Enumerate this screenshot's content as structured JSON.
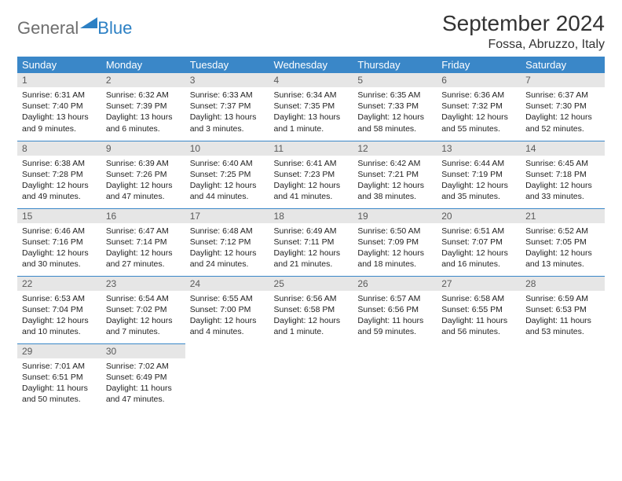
{
  "logo": {
    "text_general": "General",
    "text_blue": "Blue"
  },
  "title": "September 2024",
  "location": "Fossa, Abruzzo, Italy",
  "colors": {
    "header_bg": "#3a87c8",
    "header_text": "#ffffff",
    "daynum_bg": "#e6e6e6",
    "daynum_text": "#5a5a5a",
    "row_border": "#3a87c8",
    "logo_blue": "#2c80c4",
    "logo_gray": "#6e6e6e"
  },
  "day_headers": [
    "Sunday",
    "Monday",
    "Tuesday",
    "Wednesday",
    "Thursday",
    "Friday",
    "Saturday"
  ],
  "weeks": [
    [
      {
        "num": "1",
        "sunrise": "Sunrise: 6:31 AM",
        "sunset": "Sunset: 7:40 PM",
        "daylight": "Daylight: 13 hours and 9 minutes."
      },
      {
        "num": "2",
        "sunrise": "Sunrise: 6:32 AM",
        "sunset": "Sunset: 7:39 PM",
        "daylight": "Daylight: 13 hours and 6 minutes."
      },
      {
        "num": "3",
        "sunrise": "Sunrise: 6:33 AM",
        "sunset": "Sunset: 7:37 PM",
        "daylight": "Daylight: 13 hours and 3 minutes."
      },
      {
        "num": "4",
        "sunrise": "Sunrise: 6:34 AM",
        "sunset": "Sunset: 7:35 PM",
        "daylight": "Daylight: 13 hours and 1 minute."
      },
      {
        "num": "5",
        "sunrise": "Sunrise: 6:35 AM",
        "sunset": "Sunset: 7:33 PM",
        "daylight": "Daylight: 12 hours and 58 minutes."
      },
      {
        "num": "6",
        "sunrise": "Sunrise: 6:36 AM",
        "sunset": "Sunset: 7:32 PM",
        "daylight": "Daylight: 12 hours and 55 minutes."
      },
      {
        "num": "7",
        "sunrise": "Sunrise: 6:37 AM",
        "sunset": "Sunset: 7:30 PM",
        "daylight": "Daylight: 12 hours and 52 minutes."
      }
    ],
    [
      {
        "num": "8",
        "sunrise": "Sunrise: 6:38 AM",
        "sunset": "Sunset: 7:28 PM",
        "daylight": "Daylight: 12 hours and 49 minutes."
      },
      {
        "num": "9",
        "sunrise": "Sunrise: 6:39 AM",
        "sunset": "Sunset: 7:26 PM",
        "daylight": "Daylight: 12 hours and 47 minutes."
      },
      {
        "num": "10",
        "sunrise": "Sunrise: 6:40 AM",
        "sunset": "Sunset: 7:25 PM",
        "daylight": "Daylight: 12 hours and 44 minutes."
      },
      {
        "num": "11",
        "sunrise": "Sunrise: 6:41 AM",
        "sunset": "Sunset: 7:23 PM",
        "daylight": "Daylight: 12 hours and 41 minutes."
      },
      {
        "num": "12",
        "sunrise": "Sunrise: 6:42 AM",
        "sunset": "Sunset: 7:21 PM",
        "daylight": "Daylight: 12 hours and 38 minutes."
      },
      {
        "num": "13",
        "sunrise": "Sunrise: 6:44 AM",
        "sunset": "Sunset: 7:19 PM",
        "daylight": "Daylight: 12 hours and 35 minutes."
      },
      {
        "num": "14",
        "sunrise": "Sunrise: 6:45 AM",
        "sunset": "Sunset: 7:18 PM",
        "daylight": "Daylight: 12 hours and 33 minutes."
      }
    ],
    [
      {
        "num": "15",
        "sunrise": "Sunrise: 6:46 AM",
        "sunset": "Sunset: 7:16 PM",
        "daylight": "Daylight: 12 hours and 30 minutes."
      },
      {
        "num": "16",
        "sunrise": "Sunrise: 6:47 AM",
        "sunset": "Sunset: 7:14 PM",
        "daylight": "Daylight: 12 hours and 27 minutes."
      },
      {
        "num": "17",
        "sunrise": "Sunrise: 6:48 AM",
        "sunset": "Sunset: 7:12 PM",
        "daylight": "Daylight: 12 hours and 24 minutes."
      },
      {
        "num": "18",
        "sunrise": "Sunrise: 6:49 AM",
        "sunset": "Sunset: 7:11 PM",
        "daylight": "Daylight: 12 hours and 21 minutes."
      },
      {
        "num": "19",
        "sunrise": "Sunrise: 6:50 AM",
        "sunset": "Sunset: 7:09 PM",
        "daylight": "Daylight: 12 hours and 18 minutes."
      },
      {
        "num": "20",
        "sunrise": "Sunrise: 6:51 AM",
        "sunset": "Sunset: 7:07 PM",
        "daylight": "Daylight: 12 hours and 16 minutes."
      },
      {
        "num": "21",
        "sunrise": "Sunrise: 6:52 AM",
        "sunset": "Sunset: 7:05 PM",
        "daylight": "Daylight: 12 hours and 13 minutes."
      }
    ],
    [
      {
        "num": "22",
        "sunrise": "Sunrise: 6:53 AM",
        "sunset": "Sunset: 7:04 PM",
        "daylight": "Daylight: 12 hours and 10 minutes."
      },
      {
        "num": "23",
        "sunrise": "Sunrise: 6:54 AM",
        "sunset": "Sunset: 7:02 PM",
        "daylight": "Daylight: 12 hours and 7 minutes."
      },
      {
        "num": "24",
        "sunrise": "Sunrise: 6:55 AM",
        "sunset": "Sunset: 7:00 PM",
        "daylight": "Daylight: 12 hours and 4 minutes."
      },
      {
        "num": "25",
        "sunrise": "Sunrise: 6:56 AM",
        "sunset": "Sunset: 6:58 PM",
        "daylight": "Daylight: 12 hours and 1 minute."
      },
      {
        "num": "26",
        "sunrise": "Sunrise: 6:57 AM",
        "sunset": "Sunset: 6:56 PM",
        "daylight": "Daylight: 11 hours and 59 minutes."
      },
      {
        "num": "27",
        "sunrise": "Sunrise: 6:58 AM",
        "sunset": "Sunset: 6:55 PM",
        "daylight": "Daylight: 11 hours and 56 minutes."
      },
      {
        "num": "28",
        "sunrise": "Sunrise: 6:59 AM",
        "sunset": "Sunset: 6:53 PM",
        "daylight": "Daylight: 11 hours and 53 minutes."
      }
    ],
    [
      {
        "num": "29",
        "sunrise": "Sunrise: 7:01 AM",
        "sunset": "Sunset: 6:51 PM",
        "daylight": "Daylight: 11 hours and 50 minutes."
      },
      {
        "num": "30",
        "sunrise": "Sunrise: 7:02 AM",
        "sunset": "Sunset: 6:49 PM",
        "daylight": "Daylight: 11 hours and 47 minutes."
      },
      null,
      null,
      null,
      null,
      null
    ]
  ]
}
